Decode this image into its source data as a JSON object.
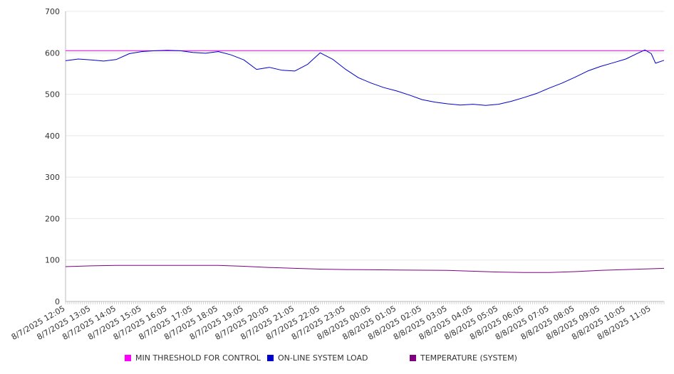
{
  "chart_data": {
    "type": "line",
    "ylim": [
      0,
      700
    ],
    "yticks": [
      0,
      100,
      200,
      300,
      400,
      500,
      600,
      700
    ],
    "x_start": "8/7/2025 12:05",
    "x_end": "8/8/2025 11:35",
    "xtick_labels": [
      "8/7/2025 12:05",
      "8/7/2025 13:05",
      "8/7/2025 14:05",
      "8/7/2025 15:05",
      "8/7/2025 16:05",
      "8/7/2025 17:05",
      "8/7/2025 18:05",
      "8/7/2025 19:05",
      "8/7/2025 20:05",
      "8/7/2025 21:05",
      "8/7/2025 22:05",
      "8/7/2025 23:05",
      "8/8/2025 00:05",
      "8/8/2025 01:05",
      "8/8/2025 02:05",
      "8/8/2025 03:05",
      "8/8/2025 04:05",
      "8/8/2025 05:05",
      "8/8/2025 06:05",
      "8/8/2025 07:05",
      "8/8/2025 08:05",
      "8/8/2025 09:05",
      "8/8/2025 10:05",
      "8/8/2025 11:05"
    ],
    "grid": true,
    "legend_position": "bottom",
    "series": [
      {
        "name": "MIN THRESHOLD FOR CONTROL",
        "color": "#ff00ff",
        "points": [
          [
            "8/7/2025 12:05",
            605
          ],
          [
            "8/8/2025 11:35",
            605
          ]
        ]
      },
      {
        "name": "ON-LINE SYSTEM LOAD",
        "color": "#0000cc",
        "points": [
          [
            "8/7/2025 12:05",
            581
          ],
          [
            "8/7/2025 12:35",
            585
          ],
          [
            "8/7/2025 13:05",
            583
          ],
          [
            "8/7/2025 13:35",
            580
          ],
          [
            "8/7/2025 14:05",
            584
          ],
          [
            "8/7/2025 14:35",
            598
          ],
          [
            "8/7/2025 15:05",
            603
          ],
          [
            "8/7/2025 15:35",
            605
          ],
          [
            "8/7/2025 16:05",
            606
          ],
          [
            "8/7/2025 16:35",
            605
          ],
          [
            "8/7/2025 17:05",
            601
          ],
          [
            "8/7/2025 17:35",
            599
          ],
          [
            "8/7/2025 18:05",
            603
          ],
          [
            "8/7/2025 18:35",
            595
          ],
          [
            "8/7/2025 19:05",
            583
          ],
          [
            "8/7/2025 19:35",
            560
          ],
          [
            "8/7/2025 20:05",
            565
          ],
          [
            "8/7/2025 20:35",
            558
          ],
          [
            "8/7/2025 21:05",
            556
          ],
          [
            "8/7/2025 21:35",
            572
          ],
          [
            "8/7/2025 22:05",
            600
          ],
          [
            "8/7/2025 22:35",
            584
          ],
          [
            "8/7/2025 23:05",
            560
          ],
          [
            "8/7/2025 23:35",
            540
          ],
          [
            "8/8/2025 00:05",
            527
          ],
          [
            "8/8/2025 00:35",
            516
          ],
          [
            "8/8/2025 01:05",
            508
          ],
          [
            "8/8/2025 01:35",
            498
          ],
          [
            "8/8/2025 02:05",
            487
          ],
          [
            "8/8/2025 02:35",
            481
          ],
          [
            "8/8/2025 03:05",
            477
          ],
          [
            "8/8/2025 03:35",
            474
          ],
          [
            "8/8/2025 04:05",
            476
          ],
          [
            "8/8/2025 04:35",
            473
          ],
          [
            "8/8/2025 05:05",
            476
          ],
          [
            "8/8/2025 05:35",
            483
          ],
          [
            "8/8/2025 06:05",
            492
          ],
          [
            "8/8/2025 06:35",
            502
          ],
          [
            "8/8/2025 07:05",
            515
          ],
          [
            "8/8/2025 07:35",
            527
          ],
          [
            "8/8/2025 08:05",
            541
          ],
          [
            "8/8/2025 08:35",
            556
          ],
          [
            "8/8/2025 09:05",
            567
          ],
          [
            "8/8/2025 09:35",
            576
          ],
          [
            "8/8/2025 10:05",
            585
          ],
          [
            "8/8/2025 10:35",
            600
          ],
          [
            "8/8/2025 10:50",
            607
          ],
          [
            "8/8/2025 11:05",
            598
          ],
          [
            "8/8/2025 11:15",
            575
          ],
          [
            "8/8/2025 11:35",
            582
          ]
        ]
      },
      {
        "name": "TEMPERATURE (SYSTEM)",
        "color": "#800080",
        "points": [
          [
            "8/7/2025 12:05",
            84
          ],
          [
            "8/7/2025 13:05",
            86
          ],
          [
            "8/7/2025 14:05",
            87
          ],
          [
            "8/7/2025 16:05",
            87
          ],
          [
            "8/7/2025 18:05",
            87
          ],
          [
            "8/7/2025 19:05",
            85
          ],
          [
            "8/7/2025 20:05",
            82
          ],
          [
            "8/7/2025 21:05",
            80
          ],
          [
            "8/7/2025 22:05",
            78
          ],
          [
            "8/7/2025 23:05",
            77
          ],
          [
            "8/8/2025 01:05",
            76
          ],
          [
            "8/8/2025 03:05",
            75
          ],
          [
            "8/8/2025 05:05",
            71
          ],
          [
            "8/8/2025 06:05",
            70
          ],
          [
            "8/8/2025 07:05",
            70
          ],
          [
            "8/8/2025 08:05",
            72
          ],
          [
            "8/8/2025 09:05",
            75
          ],
          [
            "8/8/2025 10:05",
            77
          ],
          [
            "8/8/2025 11:05",
            79
          ],
          [
            "8/8/2025 11:35",
            80
          ]
        ]
      }
    ]
  }
}
